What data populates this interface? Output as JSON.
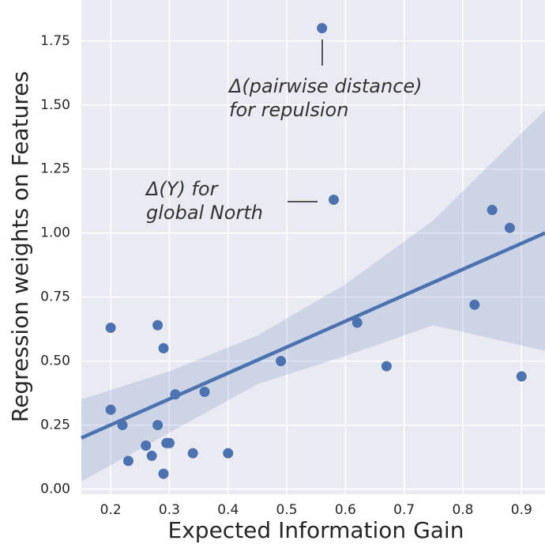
{
  "chart_data": {
    "type": "scatter",
    "x_label": "Expected Information Gain",
    "y_label": "Regression weights on Features",
    "color": "#4c72b0",
    "grid": true,
    "xlim": [
      0.15,
      0.94
    ],
    "ylim": [
      -0.02,
      1.91
    ],
    "xticks": [
      0.2,
      0.3,
      0.4,
      0.5,
      0.6,
      0.7,
      0.8,
      0.9
    ],
    "yticks": [
      {
        "value": 0,
        "label": "0.00"
      },
      0.25,
      {
        "value": 0.5,
        "label": "0.50"
      },
      0.75,
      {
        "value": 1,
        "label": "1.00"
      },
      1.25,
      {
        "value": 1.5,
        "label": "1.50"
      },
      1.75
    ],
    "x": [
      0.56,
      0.58,
      0.85,
      0.88,
      0.82,
      0.62,
      0.2,
      0.28,
      0.29,
      0.49,
      0.67,
      0.9,
      0.36,
      0.31,
      0.2,
      0.22,
      0.28,
      0.26,
      0.295,
      0.3,
      0.23,
      0.27,
      0.34,
      0.4,
      0.29
    ],
    "values": [
      1.8,
      1.13,
      1.09,
      1.02,
      0.72,
      0.65,
      0.63,
      0.64,
      0.55,
      0.5,
      0.48,
      0.44,
      0.38,
      0.37,
      0.31,
      0.25,
      0.25,
      0.17,
      0.18,
      0.18,
      0.11,
      0.13,
      0.14,
      0.14,
      0.06
    ],
    "fit": {
      "x": [
        0.15,
        0.94
      ],
      "values": [
        0.2,
        1.0
      ]
    },
    "band": {
      "x": [
        0.15,
        0.3,
        0.45,
        0.6,
        0.75,
        0.94
      ],
      "upper": [
        0.35,
        0.46,
        0.6,
        0.8,
        1.05,
        1.48
      ],
      "lower": [
        0.03,
        0.22,
        0.41,
        0.52,
        0.64,
        0.54
      ]
    },
    "annotations": [
      {
        "lines": [
          "Δ(pairwise distance)",
          "for repulsion"
        ]
      },
      {
        "lines": [
          "Δ(Y) for",
          "global North"
        ]
      }
    ]
  }
}
